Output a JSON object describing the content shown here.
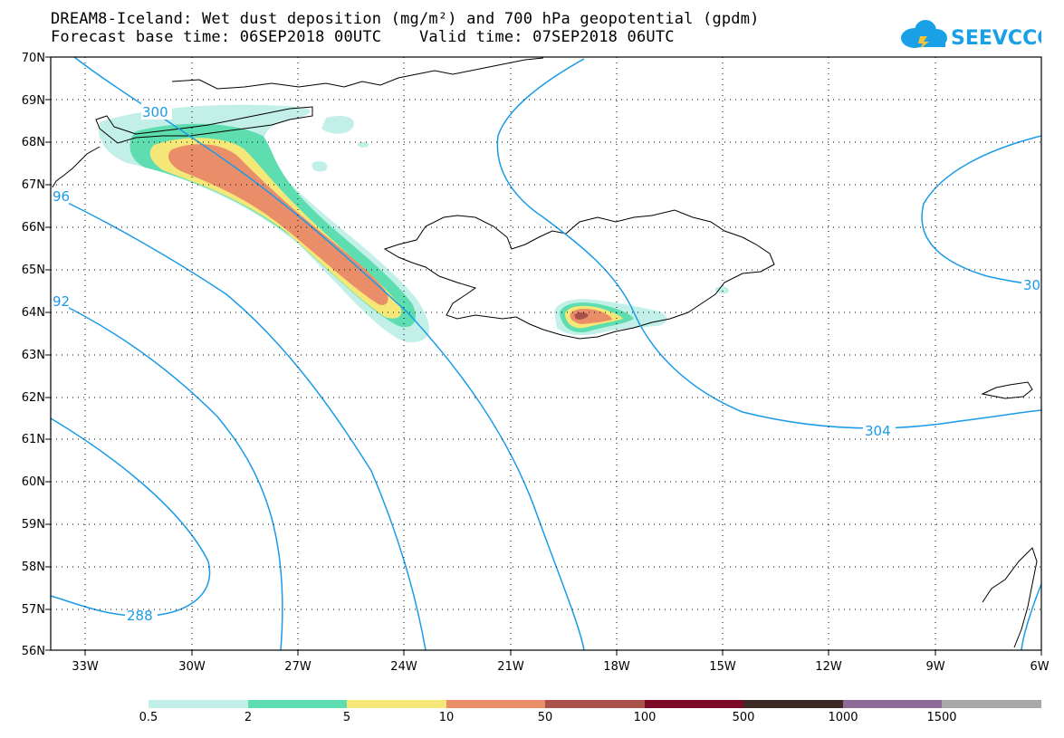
{
  "title": {
    "line1": "DREAM8-Iceland: Wet dust deposition (mg/m²) and 700 hPa geopotential (gpdm)",
    "line2": "Forecast base time: 06SEP2018 00UTC    Valid time: 07SEP2018 06UTC"
  },
  "logo_text": "SEEVCCC",
  "map": {
    "lat_labels": [
      "70N",
      "69N",
      "68N",
      "67N",
      "66N",
      "65N",
      "64N",
      "63N",
      "62N",
      "61N",
      "60N",
      "59N",
      "58N",
      "57N",
      "56N"
    ],
    "lon_labels": [
      "33W",
      "30W",
      "27W",
      "24W",
      "21W",
      "18W",
      "15W",
      "12W",
      "9W",
      "6W"
    ],
    "contour_labels": [
      "300",
      "96",
      "92",
      "288",
      "304",
      "30",
      "304"
    ]
  },
  "legend": {
    "colors": [
      "#c2f0e8",
      "#5edeb0",
      "#f6e878",
      "#ea8e6a",
      "#a8524a",
      "#7c0a26",
      "#3c2a24",
      "#8e6a98",
      "#a8a8a8"
    ],
    "labels": [
      "0.5",
      "2",
      "5",
      "10",
      "50",
      "100",
      "500",
      "1000",
      "1500"
    ]
  }
}
